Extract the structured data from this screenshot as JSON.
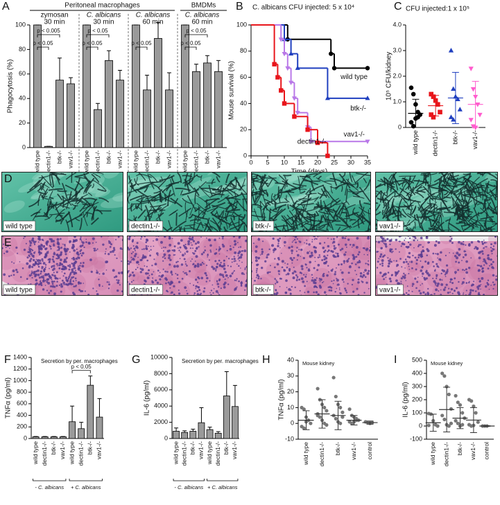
{
  "panel_labels": [
    "A",
    "B",
    "C",
    "D",
    "E",
    "F",
    "G",
    "H",
    "I"
  ],
  "chart_data": [
    {
      "type": "bar",
      "headers": [
        "Peritoneal macrophages",
        "BMDMs"
      ],
      "ylabel": "Phagocytosis (%)",
      "ylim": [
        0,
        100
      ],
      "yticks": [
        0,
        20,
        40,
        60,
        80,
        100
      ],
      "color": "#9a9a9a",
      "groups": [
        {
          "subtitle": [
            "zymosan",
            "30 min"
          ],
          "categories": [
            "wild type",
            "dectin1-/-",
            "btk-/-",
            "vav1-/-"
          ],
          "values": [
            100,
            1,
            55,
            52
          ],
          "errors": [
            0,
            0,
            18,
            5
          ],
          "annotations": [
            "p < 0.005",
            "p < 0.05"
          ]
        },
        {
          "subtitle": [
            "C. albicans",
            "30 min"
          ],
          "categories": [
            "wild type",
            "dectin1-/-",
            "btk-/-",
            "vav1-/-"
          ],
          "values": [
            100,
            31,
            71,
            55
          ],
          "errors": [
            0,
            5,
            8,
            8
          ],
          "annotations": [
            "p < 0.05",
            "p < 0.05"
          ]
        },
        {
          "subtitle": [
            "C. albicans",
            "60 min"
          ],
          "categories": [
            "wild type",
            "dectin1-/-",
            "btk-/-",
            "vav1-/-"
          ],
          "values": [
            100,
            47,
            89,
            47
          ],
          "errors": [
            0,
            12,
            13,
            14
          ],
          "annotations": [
            "p < 0.05"
          ]
        },
        {
          "subtitle": [
            "C. albicans",
            "60 min"
          ],
          "categories": [
            "wild type",
            "dectin1-/-",
            "btk-/-",
            "vav1-/-"
          ],
          "values": [
            100,
            62,
            69,
            62
          ],
          "errors": [
            0,
            6,
            6,
            9
          ],
          "annotations": [
            "p < 0.05",
            "p < 0.05"
          ]
        }
      ]
    },
    {
      "type": "step",
      "title": "C. albicans CFU injected: 5 x 10⁴",
      "xlabel": "Time (days)",
      "ylabel": "Mouse survival (%)",
      "xlim": [
        0,
        35
      ],
      "xticks": [
        0,
        5,
        10,
        15,
        20,
        25,
        30,
        35
      ],
      "ylim": [
        0,
        100
      ],
      "yticks": [
        0,
        20,
        40,
        60,
        80,
        100
      ],
      "series": [
        {
          "name": "wild type",
          "color": "#000000",
          "marker": "circle",
          "x": [
            0,
            11,
            24,
            25,
            35
          ],
          "values": [
            100,
            89,
            78,
            67,
            67
          ]
        },
        {
          "name": "btk-/-",
          "color": "#1f3fbf",
          "marker": "triangle-up",
          "x": [
            0,
            10,
            12,
            14,
            23,
            35
          ],
          "values": [
            100,
            89,
            78,
            67,
            44,
            44
          ]
        },
        {
          "name": "vav1-/-",
          "color": "#b978e8",
          "marker": "triangle-down",
          "x": [
            0,
            9,
            10,
            11,
            12,
            13,
            14,
            17,
            18,
            35
          ],
          "values": [
            100,
            89,
            78,
            67,
            56,
            44,
            33,
            22,
            11,
            11
          ]
        },
        {
          "name": "dectin1-/-",
          "color": "#e8151b",
          "marker": "square",
          "x": [
            0,
            7,
            8,
            9,
            10,
            13,
            17,
            20,
            23
          ],
          "values": [
            100,
            70,
            60,
            50,
            40,
            30,
            20,
            10,
            0
          ]
        }
      ]
    },
    {
      "type": "dot",
      "title": "CFU injected:1 x 10⁵",
      "ylabel": "10⁵ CFU/kidney",
      "ylim": [
        0,
        4
      ],
      "yticks": [
        0,
        {
          "value": 1,
          "label": "1.0"
        },
        {
          "value": 2,
          "label": "2.0"
        },
        {
          "value": 3,
          "label": "3.0"
        },
        {
          "value": 4,
          "label": "4.0"
        }
      ],
      "series": [
        {
          "name": "wild type",
          "color": "#000000",
          "marker": "circle",
          "values": [
            1.55,
            1.3,
            0.9,
            0.6,
            0.5,
            0.2,
            0.05,
            0.35,
            0.4
          ],
          "mean": 0.55,
          "sd": 0.55
        },
        {
          "name": "dectin1-/-",
          "color": "#e8151b",
          "marker": "square",
          "values": [
            1.3,
            1.2,
            1.05,
            0.9,
            0.6,
            0.5,
            0.4
          ],
          "mean": 0.85,
          "sd": 0.4
        },
        {
          "name": "btk-/-",
          "color": "#1f3fbf",
          "marker": "triangle-up",
          "values": [
            3.0,
            1.5,
            1.2,
            1.1,
            0.7,
            0.4,
            0.3
          ],
          "mean": 1.15,
          "sd": 1.0
        },
        {
          "name": "vav1-/-",
          "color": "#ff5ccd",
          "marker": "triangle-down",
          "values": [
            2.3,
            1.5,
            1.2,
            0.9,
            0.5,
            0.3,
            0.05,
            0.0
          ],
          "mean": 0.9,
          "sd": 0.9
        }
      ]
    },
    {
      "type": "bar",
      "title": "Secretion by per. macrophages",
      "ylabel": "TNFα (pg/ml)",
      "ylim": [
        0,
        1400
      ],
      "yticks": [
        0,
        200,
        400,
        600,
        800,
        1000,
        1200,
        1400
      ],
      "color": "#9a9a9a",
      "categories": [
        "wild type",
        "dectin1-/-",
        "btk-/-",
        "vav1-/-",
        "wild type",
        "dectin1-/-",
        "btk-/-",
        "vav1-/-"
      ],
      "values": [
        30,
        30,
        30,
        30,
        290,
        170,
        920,
        370
      ],
      "errors": [
        5,
        5,
        5,
        5,
        270,
        110,
        160,
        320
      ],
      "group_labels": [
        "- C. albicans",
        "+ C. albicans"
      ],
      "annotations": [
        "p < 0.05"
      ]
    },
    {
      "type": "bar",
      "title": "Secretion by per. macrophages",
      "ylabel": "IL-6 (pg/ml)",
      "ylim": [
        0,
        10000
      ],
      "yticks": [
        0,
        2000,
        4000,
        6000,
        8000,
        10000
      ],
      "color": "#9a9a9a",
      "categories": [
        "wild type",
        "dectin1-/-",
        "btk-/-",
        "vav1-/-",
        "wild type",
        "dectin1-/-",
        "btk-/-",
        "vav1-/-"
      ],
      "values": [
        900,
        750,
        900,
        1950,
        1100,
        650,
        5250,
        3950
      ],
      "errors": [
        400,
        200,
        250,
        1850,
        300,
        200,
        3000,
        2600
      ],
      "group_labels": [
        "- C. albicans",
        "+ C. albicans"
      ]
    },
    {
      "type": "dot",
      "title": "Mouse kidney",
      "ylabel": "TNFα (pg/ml)",
      "ylim": [
        -10,
        40
      ],
      "yticks": [
        -10,
        0,
        10,
        20,
        30,
        40
      ],
      "series": [
        {
          "name": "wild type",
          "color": "#777777",
          "marker": "circle",
          "values": [
            10,
            9,
            4,
            2,
            0,
            -2,
            -3,
            1
          ],
          "mean": 2,
          "sd": 6
        },
        {
          "name": "dectin1-/-",
          "color": "#777777",
          "marker": "circle",
          "values": [
            22,
            15,
            12,
            10,
            8,
            6,
            4,
            2,
            0,
            -1,
            5
          ],
          "mean": 6,
          "sd": 9
        },
        {
          "name": "btk-/-",
          "color": "#777777",
          "marker": "circle",
          "values": [
            29,
            17,
            12,
            10,
            7,
            5,
            3,
            1,
            0,
            4
          ],
          "mean": 5,
          "sd": 9
        },
        {
          "name": "vav1-/-",
          "color": "#777777",
          "marker": "circle",
          "values": [
            9,
            5,
            4,
            3,
            2,
            1,
            0,
            1,
            2
          ],
          "mean": 2,
          "sd": 3
        },
        {
          "name": "control",
          "color": "#777777",
          "marker": "circle",
          "values": [
            1,
            0.5,
            0,
            0.5
          ],
          "mean": 0.5,
          "sd": 1
        }
      ]
    },
    {
      "type": "dot",
      "title": "Mouse kidney",
      "ylabel": "IL-6 (pg/ml)",
      "ylim": [
        -100,
        500
      ],
      "yticks": [
        -100,
        0,
        100,
        200,
        300,
        400,
        500
      ],
      "series": [
        {
          "name": "wild type",
          "color": "#777777",
          "marker": "circle",
          "values": [
            95,
            90,
            40,
            10,
            0,
            5
          ],
          "mean": 25,
          "sd": 65
        },
        {
          "name": "dectin1-/-",
          "color": "#777777",
          "marker": "circle",
          "values": [
            400,
            380,
            300,
            240,
            130,
            80,
            50,
            10,
            0,
            20
          ],
          "mean": 125,
          "sd": 170
        },
        {
          "name": "btk-/-",
          "color": "#777777",
          "marker": "circle",
          "values": [
            230,
            180,
            160,
            100,
            60,
            40,
            20,
            0,
            10
          ],
          "mean": 60,
          "sd": 80
        },
        {
          "name": "vav1-/-",
          "color": "#777777",
          "marker": "circle",
          "values": [
            200,
            190,
            150,
            100,
            30,
            10,
            0,
            5
          ],
          "mean": 45,
          "sd": 95
        },
        {
          "name": "control",
          "color": "#777777",
          "marker": "circle",
          "values": [
            0,
            0,
            0
          ],
          "mean": 0,
          "sd": 2
        }
      ]
    }
  ],
  "histology": {
    "rows": [
      {
        "stain": "grocott",
        "labels": [
          "wild type",
          "dectin1-/-",
          "btk-/-",
          "vav1-/-"
        ]
      },
      {
        "stain": "he",
        "labels": [
          "wild type",
          "dectin1-/-",
          "btk-/-",
          "vav1-/-"
        ]
      }
    ]
  }
}
